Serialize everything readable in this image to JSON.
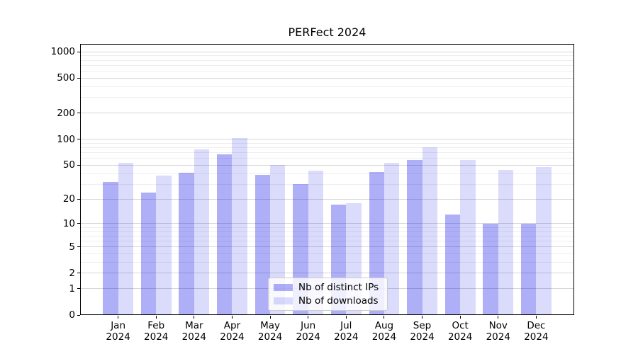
{
  "figure": {
    "background": "#ffffff"
  },
  "chart_data": {
    "type": "bar",
    "title": "PERFect 2024",
    "categories": [
      "Jan 2024",
      "Feb 2024",
      "Mar 2024",
      "Apr 2024",
      "May 2024",
      "Jun 2024",
      "Jul 2024",
      "Aug 2024",
      "Sep 2024",
      "Oct 2024",
      "Nov 2024",
      "Dec 2024"
    ],
    "series": [
      {
        "name": "Nb of distinct IPs",
        "color": "rgba(16,16,230,0.335)",
        "values": [
          32,
          24,
          41,
          67,
          39,
          30,
          17,
          42,
          58,
          13,
          10,
          10
        ]
      },
      {
        "name": "Nb of downloads",
        "color": "rgba(16,16,230,0.15)",
        "values": [
          53,
          38,
          77,
          103,
          50,
          43,
          18,
          53,
          81,
          58,
          44,
          48
        ]
      }
    ],
    "y_axis": {
      "scale": "log10(value+1)",
      "major_ticks": [
        0,
        1,
        2,
        5,
        10,
        20,
        50,
        100,
        200,
        500,
        1000
      ],
      "minor_gridlines": [
        3,
        4,
        6,
        7,
        8,
        9,
        30,
        40,
        60,
        70,
        80,
        90,
        300,
        400,
        600,
        700,
        800,
        900
      ],
      "top_value": 1233
    },
    "xlabel": "",
    "ylabel": "",
    "grid": true,
    "legend_position": "lower center",
    "colors": {
      "major_grid": "#d6d6d6",
      "minor_grid": "#eeeeee",
      "axis": "#000000",
      "legend_border": "#cccccc"
    }
  }
}
